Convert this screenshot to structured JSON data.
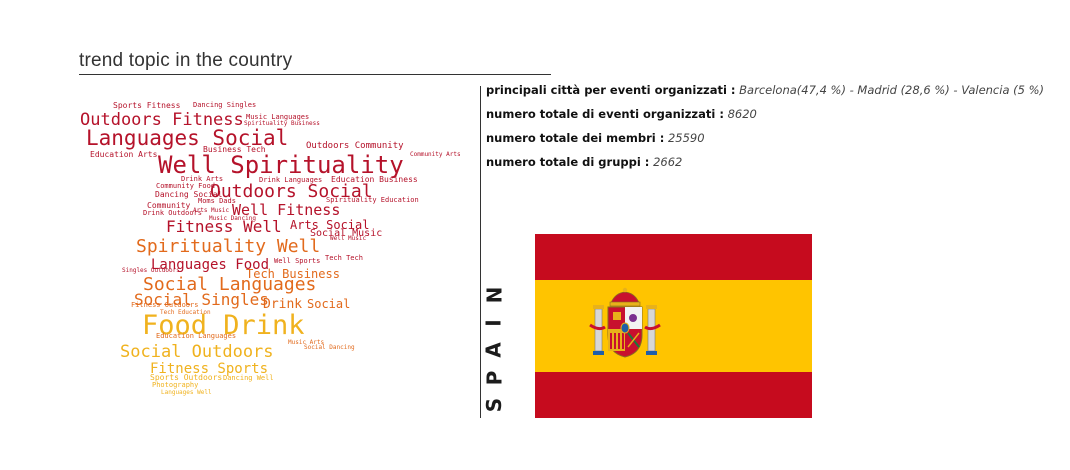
{
  "title": "trend topic in the country",
  "stats": [
    {
      "label": "principali città per eventi organizzati :",
      "value": "Barcelona(47,4 %) - Madrid (28,6 %) - Valencia (5 %)"
    },
    {
      "label": "numero totale di eventi organizzati :",
      "value": "8620"
    },
    {
      "label": "numero totale dei membri :",
      "value": "25590"
    },
    {
      "label": "numero totale di gruppi :",
      "value": "2662"
    }
  ],
  "country_label": [
    "S",
    "P",
    "A",
    "I",
    "N"
  ],
  "flag": {
    "red": "#c60b1e",
    "yellow": "#ffc400",
    "emblem": "coat-of-arms-icon"
  },
  "wordcloud": {
    "colors": {
      "red": "#b5122a",
      "orange": "#e26a1c",
      "gold": "#f0b21e"
    },
    "words": [
      {
        "text": "Sports Fitness",
        "color": "red"
      },
      {
        "text": "Dancing Singles",
        "color": "red"
      },
      {
        "text": "Music Languages",
        "color": "red"
      },
      {
        "text": "Outdoors Fitness",
        "color": "red"
      },
      {
        "text": "Spirituality Business",
        "color": "red"
      },
      {
        "text": "Languages Social",
        "color": "red"
      },
      {
        "text": "Business Tech",
        "color": "red"
      },
      {
        "text": "Outdoors Community",
        "color": "red"
      },
      {
        "text": "Education Arts",
        "color": "red"
      },
      {
        "text": "Well Spirituality",
        "color": "red"
      },
      {
        "text": "Drink Arts",
        "color": "red"
      },
      {
        "text": "Drink Languages",
        "color": "red"
      },
      {
        "text": "Community Arts",
        "color": "red"
      },
      {
        "text": "Outdoors Social",
        "color": "red"
      },
      {
        "text": "Education Business",
        "color": "red"
      },
      {
        "text": "Community Food",
        "color": "red"
      },
      {
        "text": "Dancing Social",
        "color": "red"
      },
      {
        "text": "Moms Dads",
        "color": "red"
      },
      {
        "text": "Spirituality Education",
        "color": "red"
      },
      {
        "text": "Well Fitness",
        "color": "red"
      },
      {
        "text": "Community",
        "color": "red"
      },
      {
        "text": "Drink Outdoors",
        "color": "red"
      },
      {
        "text": "Arts Music",
        "color": "red"
      },
      {
        "text": "Music Dancing",
        "color": "red"
      },
      {
        "text": "Fitness Well",
        "color": "red"
      },
      {
        "text": "Arts Social",
        "color": "red"
      },
      {
        "text": "Social Music",
        "color": "red"
      },
      {
        "text": "Well Music",
        "color": "red"
      },
      {
        "text": "Spirituality Well",
        "color": "orange"
      },
      {
        "text": "Languages Food",
        "color": "red"
      },
      {
        "text": "Well Sports",
        "color": "red"
      },
      {
        "text": "Tech Tech",
        "color": "red"
      },
      {
        "text": "Tech Business",
        "color": "orange"
      },
      {
        "text": "Singles Outdoors",
        "color": "red"
      },
      {
        "text": "Social Languages",
        "color": "orange"
      },
      {
        "text": "Social Singles",
        "color": "orange"
      },
      {
        "text": "Drink",
        "color": "orange"
      },
      {
        "text": "Social",
        "color": "orange"
      },
      {
        "text": "Fitness Outdoors",
        "color": "orange"
      },
      {
        "text": "Tech Education",
        "color": "orange"
      },
      {
        "text": "Food Drink",
        "color": "gold"
      },
      {
        "text": "Education Languages",
        "color": "orange"
      },
      {
        "text": "Music Arts",
        "color": "orange"
      },
      {
        "text": "Social Dancing",
        "color": "orange"
      },
      {
        "text": "Social Outdoors",
        "color": "gold"
      },
      {
        "text": "Fitness Sports",
        "color": "gold"
      },
      {
        "text": "Sports Outdoors",
        "color": "gold"
      },
      {
        "text": "Dancing Well",
        "color": "gold"
      },
      {
        "text": "Photography",
        "color": "gold"
      },
      {
        "text": "Languages Well",
        "color": "gold"
      }
    ]
  }
}
